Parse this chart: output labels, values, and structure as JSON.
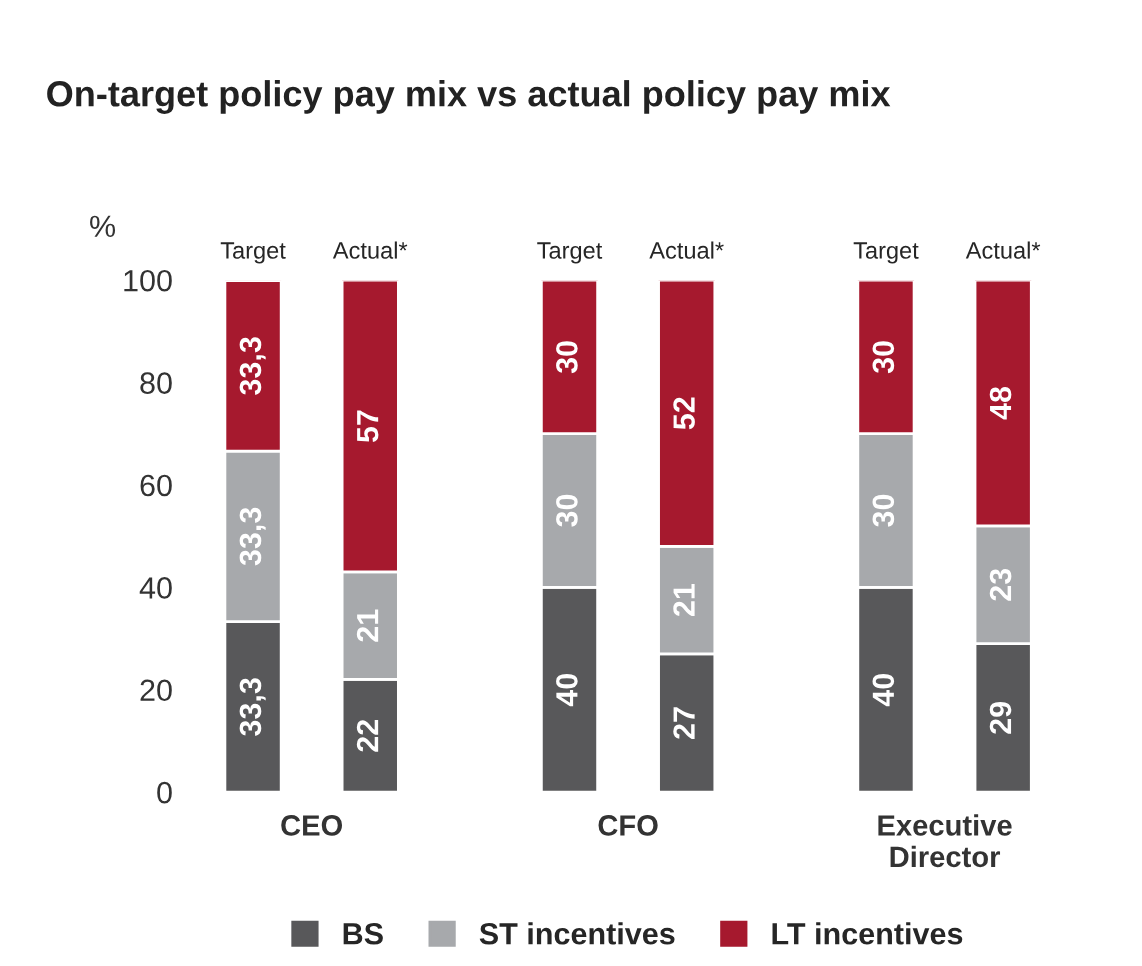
{
  "chart_data": {
    "type": "bar",
    "title": "On-target policy pay mix vs actual policy pay mix",
    "ylabel": "%",
    "categories": [
      "Target",
      "Actual*",
      "Target",
      "Actual*",
      "Target",
      "Actual*"
    ],
    "annotations": [
      "CEO",
      "CFO",
      "Executive\nDirector"
    ],
    "stacked": true,
    "series": [
      {
        "name": "BS",
        "color": "#58585a",
        "values": [
          33.3,
          22,
          40,
          27,
          40,
          29
        ],
        "value_labels": [
          "33,3",
          "22",
          "40",
          "27",
          "40",
          "29"
        ]
      },
      {
        "name": "ST incentives",
        "color": "#a7a9ac",
        "values": [
          33.3,
          21,
          30,
          21,
          30,
          23
        ],
        "value_labels": [
          "33,3",
          "21",
          "30",
          "21",
          "30",
          "23"
        ]
      },
      {
        "name": "LT incentives",
        "color": "#a6192e",
        "values": [
          33.3,
          57,
          30,
          52,
          30,
          48
        ],
        "value_labels": [
          "33,3",
          "57",
          "30",
          "52",
          "30",
          "48"
        ]
      }
    ],
    "ylim": [
      0,
      100
    ],
    "yticks": [
      0,
      20,
      40,
      60,
      80,
      100
    ],
    "grid": false,
    "legend": "bottom"
  }
}
